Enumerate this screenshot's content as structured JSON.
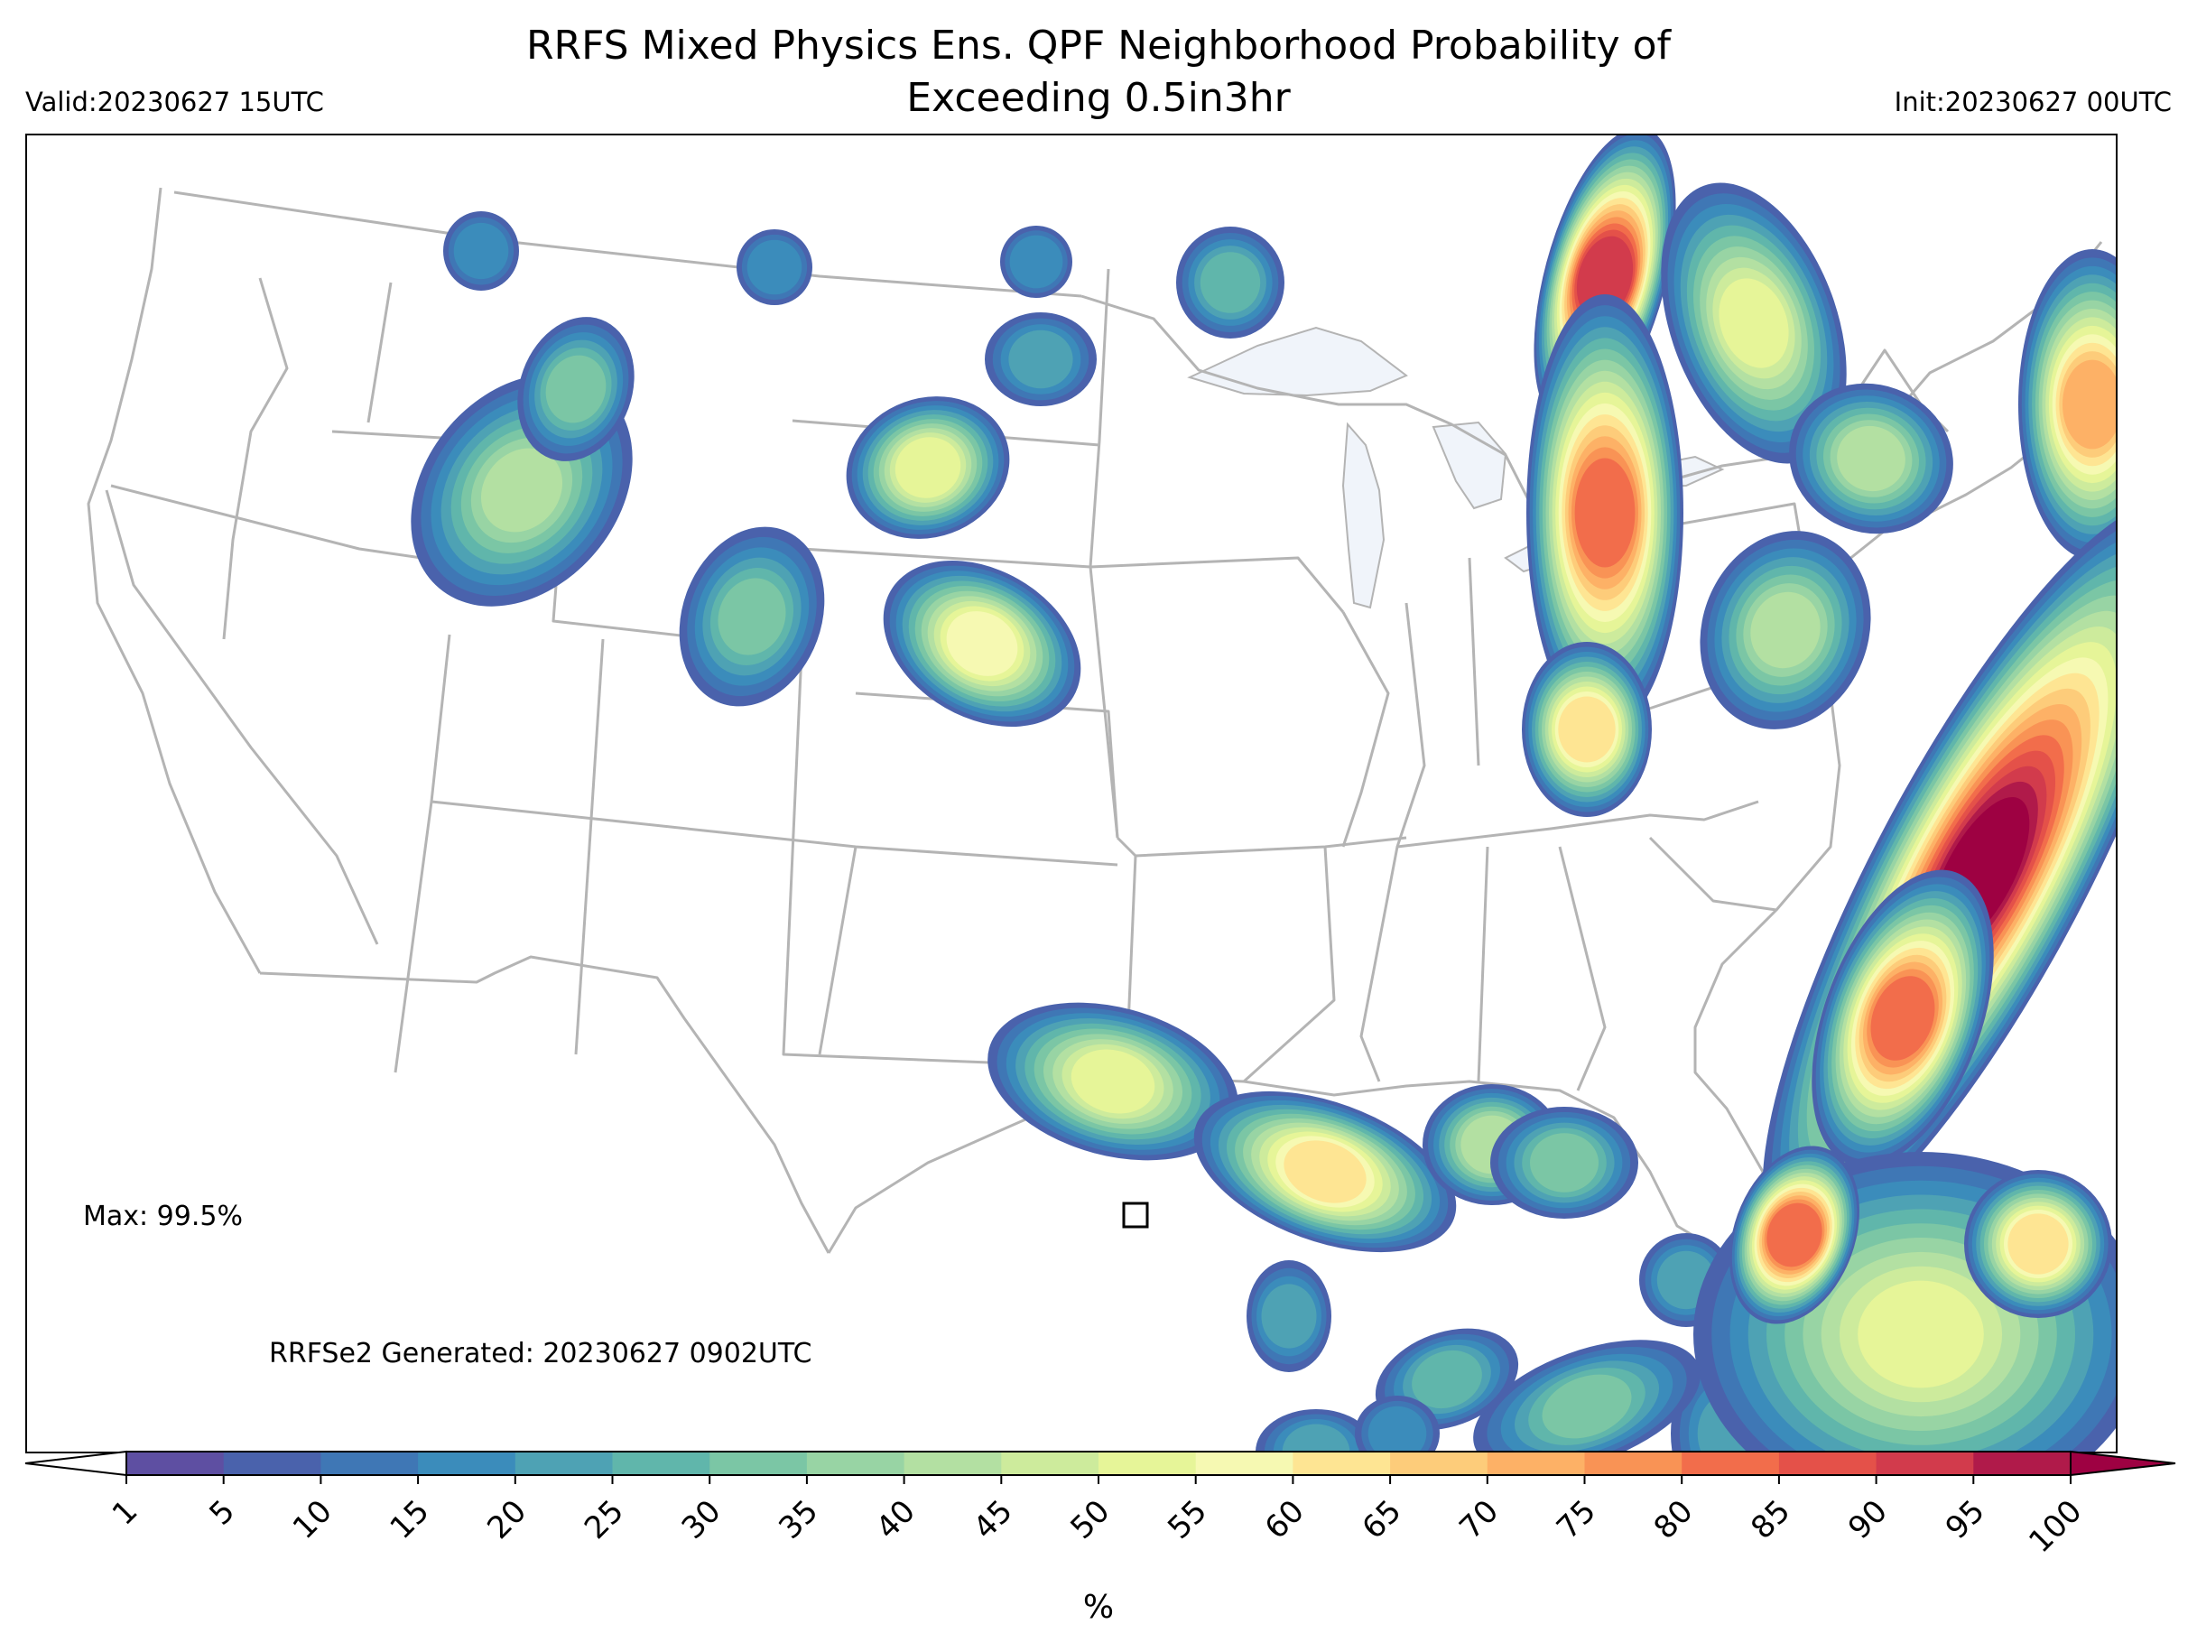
{
  "title_line1": "RRFS Mixed Physics Ens. QPF Neighborhood Probability of",
  "title_line2": "Exceeding 0.5in3hr",
  "valid": "Valid:20230627 15UTC",
  "init": "Init:20230627 00UTC",
  "max_label": "Max: 99.5%",
  "generated": "RRFSe2 Generated: 20230627 0902UTC",
  "colorbar": {
    "unit": "%",
    "levels": [
      1,
      5,
      10,
      15,
      20,
      25,
      30,
      35,
      40,
      45,
      50,
      55,
      60,
      65,
      70,
      75,
      80,
      85,
      90,
      95,
      100
    ],
    "colors": [
      "#5e4fa2",
      "#4a62ac",
      "#3f77b5",
      "#3b8cbb",
      "#4ea2b4",
      "#60b6ab",
      "#7bc6a5",
      "#98d4a4",
      "#b3e0a2",
      "#cdeb9c",
      "#e6f598",
      "#f6f9b2",
      "#fee593",
      "#fdcc7a",
      "#fdb166",
      "#f99355",
      "#f26d4b",
      "#e45149",
      "#d23b4c",
      "#b01a4a",
      "#9e0142"
    ]
  },
  "map": {
    "lakes_color": "#f0f4fa",
    "border_color": "#b4b4b4",
    "max_marker_color": "#000000"
  }
}
